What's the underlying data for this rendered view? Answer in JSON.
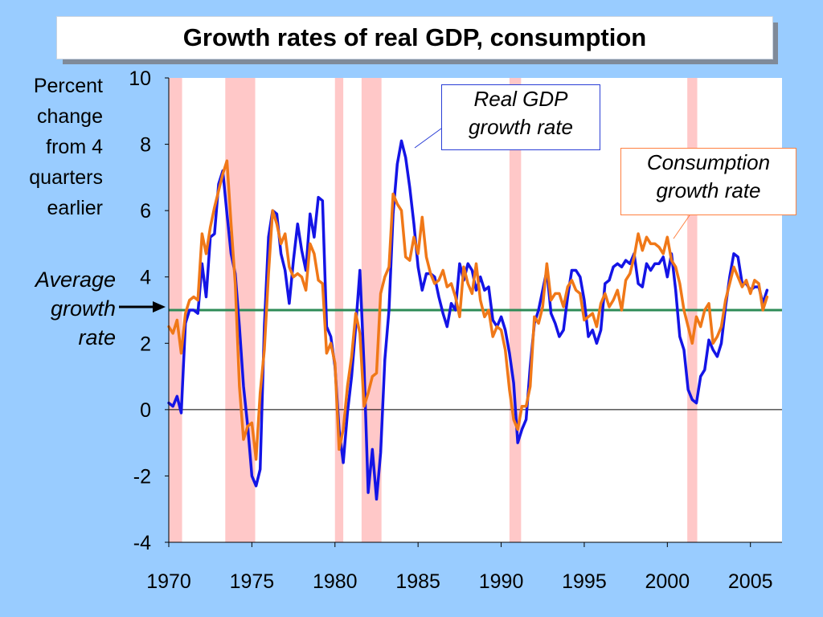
{
  "title": "Growth rates of real GDP, consumption",
  "ylabel_lines": [
    "Percent",
    "change",
    "from 4",
    "quarters",
    "earlier"
  ],
  "average_label_lines": [
    "Average",
    "growth",
    "rate"
  ],
  "callouts": {
    "gdp": [
      "Real GDP",
      "growth rate"
    ],
    "consumption": [
      "Consumption",
      "growth rate"
    ]
  },
  "colors": {
    "background": "#99CCFF",
    "gdp": "#1414E6",
    "consumption": "#F07818",
    "average": "#2E8B57",
    "recession": "#FFC8C8"
  },
  "chart_data": {
    "type": "line",
    "xlim": [
      1970,
      2006.9
    ],
    "ylim": [
      -4,
      10
    ],
    "yticks": [
      -4,
      -2,
      0,
      2,
      4,
      6,
      8,
      10
    ],
    "xticks": [
      1970,
      1975,
      1980,
      1985,
      1990,
      1995,
      2000,
      2005
    ],
    "average_growth_rate": 3,
    "recessions": [
      [
        1970.0,
        1970.8
      ],
      [
        1973.4,
        1975.2
      ],
      [
        1980.0,
        1980.5
      ],
      [
        1981.6,
        1982.8
      ],
      [
        1990.5,
        1991.2
      ],
      [
        2001.2,
        2001.8
      ]
    ],
    "series": [
      {
        "name": "Real GDP growth rate",
        "key": "gdp",
        "points": [
          [
            1970.0,
            0.2
          ],
          [
            1970.25,
            0.1
          ],
          [
            1970.5,
            0.4
          ],
          [
            1970.75,
            -0.1
          ],
          [
            1971.0,
            2.6
          ],
          [
            1971.25,
            3.0
          ],
          [
            1971.5,
            3.0
          ],
          [
            1971.75,
            2.9
          ],
          [
            1972.0,
            4.4
          ],
          [
            1972.25,
            3.4
          ],
          [
            1972.5,
            5.2
          ],
          [
            1972.75,
            5.3
          ],
          [
            1973.0,
            6.8
          ],
          [
            1973.25,
            7.2
          ],
          [
            1973.5,
            5.9
          ],
          [
            1973.75,
            4.7
          ],
          [
            1974.0,
            4.1
          ],
          [
            1974.25,
            2.5
          ],
          [
            1974.5,
            0.7
          ],
          [
            1974.75,
            -0.5
          ],
          [
            1975.0,
            -2.0
          ],
          [
            1975.25,
            -2.3
          ],
          [
            1975.5,
            -1.8
          ],
          [
            1975.75,
            2.5
          ],
          [
            1976.0,
            5.2
          ],
          [
            1976.25,
            6.0
          ],
          [
            1976.5,
            5.9
          ],
          [
            1976.75,
            4.7
          ],
          [
            1977.0,
            4.2
          ],
          [
            1977.25,
            3.2
          ],
          [
            1977.5,
            4.5
          ],
          [
            1977.75,
            5.6
          ],
          [
            1978.0,
            4.8
          ],
          [
            1978.25,
            4.2
          ],
          [
            1978.5,
            5.9
          ],
          [
            1978.75,
            5.2
          ],
          [
            1979.0,
            6.4
          ],
          [
            1979.25,
            6.3
          ],
          [
            1979.5,
            2.5
          ],
          [
            1979.75,
            2.2
          ],
          [
            1980.0,
            1.3
          ],
          [
            1980.25,
            -0.6
          ],
          [
            1980.5,
            -1.6
          ],
          [
            1980.75,
            -0.1
          ],
          [
            1981.0,
            1.0
          ],
          [
            1981.25,
            2.5
          ],
          [
            1981.5,
            4.2
          ],
          [
            1981.75,
            1.3
          ],
          [
            1982.0,
            -2.5
          ],
          [
            1982.25,
            -1.2
          ],
          [
            1982.5,
            -2.7
          ],
          [
            1982.75,
            -1.3
          ],
          [
            1983.0,
            1.5
          ],
          [
            1983.25,
            3.0
          ],
          [
            1983.5,
            5.9
          ],
          [
            1983.75,
            7.4
          ],
          [
            1984.0,
            8.1
          ],
          [
            1984.25,
            7.6
          ],
          [
            1984.5,
            6.7
          ],
          [
            1984.75,
            5.6
          ],
          [
            1985.0,
            4.3
          ],
          [
            1985.25,
            3.6
          ],
          [
            1985.5,
            4.1
          ],
          [
            1985.75,
            4.1
          ],
          [
            1986.0,
            4.0
          ],
          [
            1986.25,
            3.4
          ],
          [
            1986.5,
            2.9
          ],
          [
            1986.75,
            2.5
          ],
          [
            1987.0,
            3.2
          ],
          [
            1987.25,
            3.0
          ],
          [
            1987.5,
            4.4
          ],
          [
            1987.75,
            3.9
          ],
          [
            1988.0,
            4.4
          ],
          [
            1988.25,
            4.2
          ],
          [
            1988.5,
            3.6
          ],
          [
            1988.75,
            4.0
          ],
          [
            1989.0,
            3.6
          ],
          [
            1989.25,
            3.7
          ],
          [
            1989.5,
            2.7
          ],
          [
            1989.75,
            2.5
          ],
          [
            1990.0,
            2.8
          ],
          [
            1990.25,
            2.4
          ],
          [
            1990.5,
            1.7
          ],
          [
            1990.75,
            0.8
          ],
          [
            1991.0,
            -1.0
          ],
          [
            1991.25,
            -0.6
          ],
          [
            1991.5,
            -0.3
          ],
          [
            1991.75,
            1.3
          ],
          [
            1992.0,
            2.6
          ],
          [
            1992.25,
            3.0
          ],
          [
            1992.5,
            3.6
          ],
          [
            1992.75,
            4.2
          ],
          [
            1993.0,
            2.9
          ],
          [
            1993.25,
            2.6
          ],
          [
            1993.5,
            2.2
          ],
          [
            1993.75,
            2.4
          ],
          [
            1994.0,
            3.4
          ],
          [
            1994.25,
            4.2
          ],
          [
            1994.5,
            4.2
          ],
          [
            1994.75,
            4.0
          ],
          [
            1995.0,
            3.3
          ],
          [
            1995.25,
            2.2
          ],
          [
            1995.5,
            2.4
          ],
          [
            1995.75,
            2.0
          ],
          [
            1996.0,
            2.4
          ],
          [
            1996.25,
            3.8
          ],
          [
            1996.5,
            3.9
          ],
          [
            1996.75,
            4.3
          ],
          [
            1997.0,
            4.4
          ],
          [
            1997.25,
            4.3
          ],
          [
            1997.5,
            4.5
          ],
          [
            1997.75,
            4.4
          ],
          [
            1998.0,
            4.7
          ],
          [
            1998.25,
            3.8
          ],
          [
            1998.5,
            3.7
          ],
          [
            1998.75,
            4.4
          ],
          [
            1999.0,
            4.2
          ],
          [
            1999.25,
            4.4
          ],
          [
            1999.5,
            4.4
          ],
          [
            1999.75,
            4.6
          ],
          [
            2000.0,
            4.0
          ],
          [
            2000.25,
            4.7
          ],
          [
            2000.5,
            3.6
          ],
          [
            2000.75,
            2.2
          ],
          [
            2001.0,
            1.8
          ],
          [
            2001.25,
            0.6
          ],
          [
            2001.5,
            0.3
          ],
          [
            2001.75,
            0.2
          ],
          [
            2002.0,
            1.0
          ],
          [
            2002.25,
            1.2
          ],
          [
            2002.5,
            2.1
          ],
          [
            2002.75,
            1.8
          ],
          [
            2003.0,
            1.6
          ],
          [
            2003.25,
            2.0
          ],
          [
            2003.5,
            3.1
          ],
          [
            2003.75,
            4.0
          ],
          [
            2004.0,
            4.7
          ],
          [
            2004.25,
            4.6
          ],
          [
            2004.5,
            3.8
          ],
          [
            2004.75,
            3.8
          ],
          [
            2005.0,
            3.6
          ],
          [
            2005.25,
            3.7
          ],
          [
            2005.5,
            3.7
          ],
          [
            2005.75,
            3.2
          ],
          [
            2006.0,
            3.6
          ]
        ]
      },
      {
        "name": "Consumption growth rate",
        "key": "consumption",
        "points": [
          [
            1970.0,
            2.5
          ],
          [
            1970.25,
            2.3
          ],
          [
            1970.5,
            2.7
          ],
          [
            1970.75,
            1.7
          ],
          [
            1971.0,
            2.9
          ],
          [
            1971.25,
            3.3
          ],
          [
            1971.5,
            3.4
          ],
          [
            1971.75,
            3.3
          ],
          [
            1972.0,
            5.3
          ],
          [
            1972.25,
            4.7
          ],
          [
            1972.5,
            5.5
          ],
          [
            1972.75,
            6.1
          ],
          [
            1973.0,
            6.6
          ],
          [
            1973.25,
            7.1
          ],
          [
            1973.5,
            7.5
          ],
          [
            1973.75,
            5.6
          ],
          [
            1974.0,
            3.8
          ],
          [
            1974.25,
            0.7
          ],
          [
            1974.5,
            -0.9
          ],
          [
            1974.75,
            -0.5
          ],
          [
            1975.0,
            -0.4
          ],
          [
            1975.25,
            -1.5
          ],
          [
            1975.5,
            0.5
          ],
          [
            1975.75,
            1.8
          ],
          [
            1976.0,
            4.1
          ],
          [
            1976.25,
            6.0
          ],
          [
            1976.5,
            5.6
          ],
          [
            1976.75,
            5.0
          ],
          [
            1977.0,
            5.3
          ],
          [
            1977.25,
            4.3
          ],
          [
            1977.5,
            4.0
          ],
          [
            1977.75,
            4.1
          ],
          [
            1978.0,
            4.0
          ],
          [
            1978.25,
            3.6
          ],
          [
            1978.5,
            5.0
          ],
          [
            1978.75,
            4.7
          ],
          [
            1979.0,
            3.9
          ],
          [
            1979.25,
            3.8
          ],
          [
            1979.5,
            1.7
          ],
          [
            1979.75,
            2.0
          ],
          [
            1980.0,
            1.4
          ],
          [
            1980.25,
            -1.2
          ],
          [
            1980.5,
            -0.6
          ],
          [
            1980.75,
            0.7
          ],
          [
            1981.0,
            1.6
          ],
          [
            1981.25,
            2.9
          ],
          [
            1981.5,
            2.3
          ],
          [
            1981.75,
            0.1
          ],
          [
            1982.0,
            0.5
          ],
          [
            1982.25,
            1.0
          ],
          [
            1982.5,
            1.1
          ],
          [
            1982.75,
            3.5
          ],
          [
            1983.0,
            4.0
          ],
          [
            1983.25,
            4.3
          ],
          [
            1983.5,
            6.5
          ],
          [
            1983.75,
            6.2
          ],
          [
            1984.0,
            6.0
          ],
          [
            1984.25,
            4.6
          ],
          [
            1984.5,
            4.5
          ],
          [
            1984.75,
            5.2
          ],
          [
            1985.0,
            4.7
          ],
          [
            1985.25,
            5.8
          ],
          [
            1985.5,
            4.6
          ],
          [
            1985.75,
            4.1
          ],
          [
            1986.0,
            3.8
          ],
          [
            1986.25,
            3.9
          ],
          [
            1986.5,
            4.2
          ],
          [
            1986.75,
            3.7
          ],
          [
            1987.0,
            3.8
          ],
          [
            1987.25,
            3.4
          ],
          [
            1987.5,
            2.8
          ],
          [
            1987.75,
            4.3
          ],
          [
            1988.0,
            3.8
          ],
          [
            1988.25,
            3.5
          ],
          [
            1988.5,
            4.4
          ],
          [
            1988.75,
            3.3
          ],
          [
            1989.0,
            2.8
          ],
          [
            1989.25,
            3.0
          ],
          [
            1989.5,
            2.2
          ],
          [
            1989.75,
            2.5
          ],
          [
            1990.0,
            2.4
          ],
          [
            1990.25,
            1.8
          ],
          [
            1990.5,
            0.6
          ],
          [
            1990.75,
            -0.3
          ],
          [
            1991.0,
            -0.6
          ],
          [
            1991.25,
            0.1
          ],
          [
            1991.5,
            0.1
          ],
          [
            1991.75,
            0.7
          ],
          [
            1992.0,
            2.8
          ],
          [
            1992.25,
            2.6
          ],
          [
            1992.5,
            3.1
          ],
          [
            1992.75,
            4.4
          ],
          [
            1993.0,
            3.3
          ],
          [
            1993.25,
            3.5
          ],
          [
            1993.5,
            3.5
          ],
          [
            1993.75,
            3.1
          ],
          [
            1994.0,
            3.7
          ],
          [
            1994.25,
            3.9
          ],
          [
            1994.5,
            3.6
          ],
          [
            1994.75,
            3.5
          ],
          [
            1995.0,
            2.7
          ],
          [
            1995.25,
            2.8
          ],
          [
            1995.5,
            2.9
          ],
          [
            1995.75,
            2.5
          ],
          [
            1996.0,
            3.2
          ],
          [
            1996.25,
            3.5
          ],
          [
            1996.5,
            3.1
          ],
          [
            1996.75,
            3.3
          ],
          [
            1997.0,
            3.6
          ],
          [
            1997.25,
            3.0
          ],
          [
            1997.5,
            3.9
          ],
          [
            1997.75,
            4.1
          ],
          [
            1998.0,
            4.6
          ],
          [
            1998.25,
            5.3
          ],
          [
            1998.5,
            4.8
          ],
          [
            1998.75,
            5.2
          ],
          [
            1999.0,
            5.0
          ],
          [
            1999.25,
            5.0
          ],
          [
            1999.5,
            4.9
          ],
          [
            1999.75,
            4.7
          ],
          [
            2000.0,
            5.2
          ],
          [
            2000.25,
            4.5
          ],
          [
            2000.5,
            4.3
          ],
          [
            2000.75,
            3.8
          ],
          [
            2001.0,
            3.0
          ],
          [
            2001.25,
            2.5
          ],
          [
            2001.5,
            2.0
          ],
          [
            2001.75,
            2.8
          ],
          [
            2002.0,
            2.5
          ],
          [
            2002.25,
            3.0
          ],
          [
            2002.5,
            3.2
          ],
          [
            2002.75,
            2.0
          ],
          [
            2003.0,
            2.2
          ],
          [
            2003.25,
            2.5
          ],
          [
            2003.5,
            3.3
          ],
          [
            2003.75,
            3.8
          ],
          [
            2004.0,
            4.3
          ],
          [
            2004.25,
            4.0
          ],
          [
            2004.5,
            3.7
          ],
          [
            2004.75,
            3.9
          ],
          [
            2005.0,
            3.5
          ],
          [
            2005.25,
            3.9
          ],
          [
            2005.5,
            3.8
          ],
          [
            2005.75,
            3.0
          ],
          [
            2006.0,
            3.4
          ]
        ]
      }
    ]
  }
}
